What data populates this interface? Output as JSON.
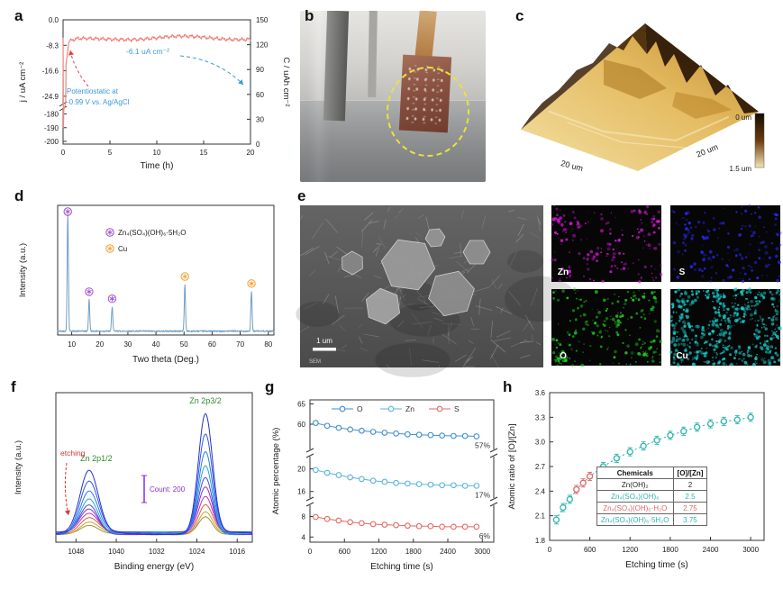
{
  "figure": {
    "background": "#ffffff"
  },
  "panels": {
    "a": {
      "letter": "a"
    },
    "b": {
      "letter": "b"
    },
    "c": {
      "letter": "c",
      "edge_label_left": "20 um",
      "edge_label_right": "20 um",
      "colorbar_top": "0 um",
      "colorbar_bottom": "1.5 um"
    },
    "d": {
      "letter": "d"
    },
    "e": {
      "letter": "e",
      "scale_bar": "1 um",
      "tag": "SEM",
      "maps": [
        {
          "element": "Zn",
          "color": "#e318e3"
        },
        {
          "element": "S",
          "color": "#2828f0"
        },
        {
          "element": "O",
          "color": "#1ed11e"
        },
        {
          "element": "Cu",
          "color": "#17cfcf"
        }
      ]
    },
    "f": {
      "letter": "f"
    },
    "g": {
      "letter": "g"
    },
    "h": {
      "letter": "h"
    }
  },
  "chart_data": [
    {
      "panel": "a",
      "type": "line",
      "xlabel": "Time (h)",
      "ylabel_left": "j / uA cm⁻²",
      "ylabel_right": "C / uAh cm⁻²",
      "x_range": [
        0,
        20
      ],
      "x_ticks": [
        0,
        5,
        10,
        15,
        20
      ],
      "y_left_break": [
        -27,
        -177
      ],
      "y_left_ticks": [
        {
          "v": 0,
          "label": "0.0"
        },
        {
          "v": -8.3,
          "label": "-8.3"
        },
        {
          "v": -16.6,
          "label": "-16.6"
        },
        {
          "v": -24.9,
          "label": "-24.9"
        },
        {
          "v": -180,
          "label": "-180"
        },
        {
          "v": -190,
          "label": "-190"
        },
        {
          "v": -200,
          "label": "-200"
        }
      ],
      "y_right_ticks": [
        0,
        30,
        60,
        90,
        120,
        150
      ],
      "series": [
        {
          "name": "current density",
          "color": "#f1837b",
          "keypoints": [
            [
              0,
              -6
            ],
            [
              0.02,
              -190
            ],
            [
              0.06,
              -190
            ],
            [
              0.3,
              -15
            ],
            [
              0.6,
              -7.5
            ],
            [
              1.5,
              -6.6
            ],
            [
              6,
              -6.0
            ],
            [
              12,
              -5.8
            ],
            [
              20,
              -6.0
            ]
          ],
          "noise_amplitude": 0.7
        }
      ],
      "annotations": {
        "steady_current": "-6.1 uA cm⁻²",
        "mode_line1": "Potentiostatic at",
        "mode_line2": "-0.99 V vs. Ag/AgCl",
        "text_color": "#3a9bd5",
        "red_arrow_color": "#e04040"
      }
    },
    {
      "panel": "d",
      "type": "line",
      "xlabel": "Two theta (Deg.)",
      "ylabel": "Intensity (a.u.)",
      "x_range": [
        5,
        82
      ],
      "x_ticks": [
        10,
        20,
        30,
        40,
        50,
        60,
        70,
        80
      ],
      "line_color": "#6f9fc4",
      "peaks": [
        {
          "two_theta": 8.6,
          "height": 1.0,
          "phase": "znso"
        },
        {
          "two_theta": 16.2,
          "height": 0.27,
          "phase": "znso"
        },
        {
          "two_theta": 24.4,
          "height": 0.21,
          "phase": "znso"
        },
        {
          "two_theta": 50.3,
          "height": 0.4,
          "phase": "cu"
        },
        {
          "two_theta": 74.0,
          "height": 0.34,
          "phase": "cu"
        }
      ],
      "legend": [
        {
          "phase": "znso",
          "label": "Zn₄(SO₄)(OH)₆·5H₂O",
          "color": "#a24cc8"
        },
        {
          "phase": "cu",
          "label": "Cu",
          "color": "#f0a030"
        }
      ]
    },
    {
      "panel": "f",
      "type": "line",
      "xlabel": "Binding energy (eV)",
      "ylabel": "Intensity (a.u.)",
      "x_range": [
        1052,
        1013
      ],
      "x_ticks": [
        1048,
        1040,
        1032,
        1024,
        1016
      ],
      "x_reversed": true,
      "peak_model": {
        "zn2p32_center": 1022.3,
        "zn2p32_sigma": 1.4,
        "zn2p12_center": 1045.4,
        "zn2p12_sigma": 1.8,
        "ratio_2p12": 0.52
      },
      "curves": [
        {
          "amplitude": 1.0,
          "color": "#2233cc"
        },
        {
          "amplitude": 0.84,
          "color": "#3355ee"
        },
        {
          "amplitude": 0.7,
          "color": "#2a7de0"
        },
        {
          "amplitude": 0.58,
          "color": "#22a8d8"
        },
        {
          "amplitude": 0.47,
          "color": "#5544dd"
        },
        {
          "amplitude": 0.38,
          "color": "#8833cc"
        },
        {
          "amplitude": 0.3,
          "color": "#bb33bb"
        },
        {
          "amplitude": 0.24,
          "color": "#cc6644"
        },
        {
          "amplitude": 0.19,
          "color": "#dd9933"
        },
        {
          "amplitude": 0.15,
          "color": "#99992a"
        }
      ],
      "annotations": {
        "etching": "etching",
        "etching_color": "#e03030",
        "zn2p12": "Zn 2p1/2",
        "zn2p32": "Zn 2p3/2",
        "peak_label_color": "#2e8b2e",
        "count": "Count: 200",
        "count_color": "#8a2be2"
      }
    },
    {
      "panel": "g",
      "type": "scatter-line",
      "xlabel": "Etching time (s)",
      "ylabel": "Atomic percentage (%)",
      "x_range": [
        0,
        3200
      ],
      "x_ticks": [
        0,
        600,
        1200,
        1800,
        2400,
        3000
      ],
      "y_ticks": [
        65,
        60,
        20,
        16,
        8,
        4
      ],
      "y_segments": [
        [
          54,
          66
        ],
        [
          15,
          22
        ],
        [
          3,
          10
        ]
      ],
      "times": [
        100,
        300,
        500,
        700,
        900,
        1100,
        1300,
        1500,
        1700,
        1900,
        2100,
        2300,
        2500,
        2700,
        2900
      ],
      "series": [
        {
          "name": "O",
          "color": "#3f8fd2",
          "values": [
            60.3,
            59.6,
            59.1,
            58.7,
            58.4,
            58.1,
            57.9,
            57.7,
            57.5,
            57.4,
            57.3,
            57.2,
            57.1,
            57.1,
            57.0
          ],
          "end_label": "57%"
        },
        {
          "name": "Zn",
          "color": "#5ab4dc",
          "values": [
            19.8,
            19.3,
            18.9,
            18.5,
            18.2,
            17.9,
            17.7,
            17.5,
            17.4,
            17.3,
            17.2,
            17.1,
            17.1,
            17.0,
            17.0
          ],
          "end_label": "17%"
        },
        {
          "name": "S",
          "color": "#e36a62",
          "values": [
            7.9,
            7.5,
            7.2,
            6.9,
            6.7,
            6.5,
            6.4,
            6.3,
            6.2,
            6.1,
            6.1,
            6.0,
            6.0,
            6.0,
            6.0
          ],
          "end_label": "6%"
        }
      ]
    },
    {
      "panel": "h",
      "type": "scatter",
      "xlabel": "Etching time (s)",
      "ylabel": "Atomic ratio of [O]/[Zn]",
      "x_range": [
        0,
        3200
      ],
      "x_ticks": [
        0,
        600,
        1200,
        1800,
        2400,
        3000
      ],
      "y_range": [
        1.8,
        3.6
      ],
      "y_ticks": [
        1.8,
        2.1,
        2.4,
        2.7,
        3.0,
        3.3,
        3.6
      ],
      "times": [
        100,
        200,
        300,
        400,
        500,
        600,
        800,
        1000,
        1200,
        1400,
        1600,
        1800,
        2000,
        2200,
        2400,
        2600,
        2800,
        3000
      ],
      "values": [
        2.05,
        2.2,
        2.3,
        2.42,
        2.5,
        2.58,
        2.7,
        2.8,
        2.88,
        2.95,
        3.02,
        3.08,
        3.13,
        3.18,
        3.22,
        3.25,
        3.27,
        3.3
      ],
      "error": 0.05,
      "point_color": "#2fb5ad",
      "alt_point_color": "#e06666",
      "alt_point_indices": [
        3,
        4,
        5
      ],
      "line_style": "dotted",
      "table": {
        "headers": [
          "Chemicals",
          "[O]/[Zn]"
        ],
        "rows": [
          {
            "chem": "Zn(OH)₂",
            "ratio": "2",
            "color": "#222222"
          },
          {
            "chem": "Zn₄(SO₄)(OH)₆",
            "ratio": "2.5",
            "color": "#2fb5ad"
          },
          {
            "chem": "Zn₄(SO₄)(OH)₆·H₂O",
            "ratio": "2.75",
            "color": "#e06666"
          },
          {
            "chem": "Zn₄(SO₄)(OH)₆·5H₂O",
            "ratio": "3.75",
            "color": "#2fb5ad"
          }
        ]
      }
    }
  ]
}
